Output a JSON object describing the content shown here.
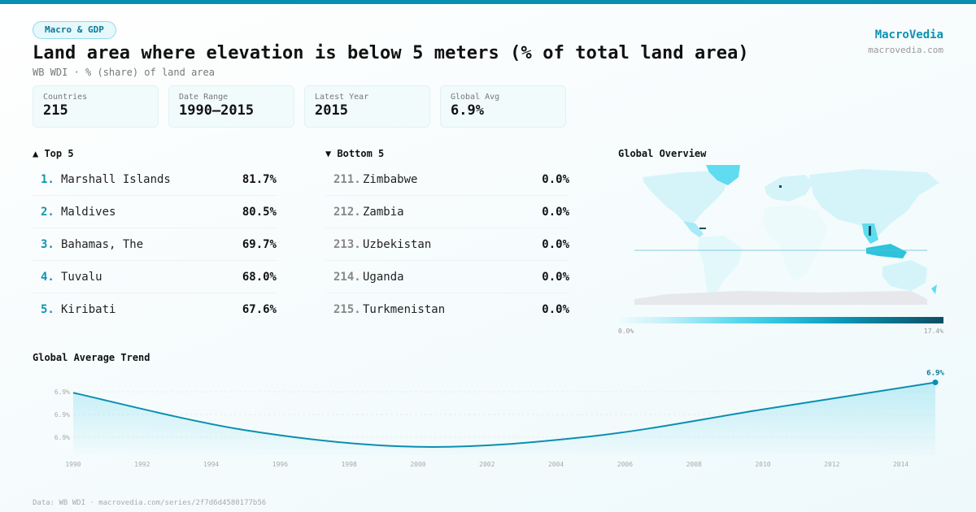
{
  "header": {
    "category_pill": "Macro & GDP",
    "title": "Land area where elevation is below 5 meters (% of total land area)",
    "subtitle": "WB WDI · % (share) of land area",
    "brand_name": "MacroVedia",
    "brand_url": "macrovedia.com"
  },
  "stats": [
    {
      "label": "Countries",
      "value": "215"
    },
    {
      "label": "Date Range",
      "value": "1990–2015"
    },
    {
      "label": "Latest Year",
      "value": "2015"
    },
    {
      "label": "Global Avg",
      "value": "6.9%"
    }
  ],
  "top5": {
    "title": "▲ Top 5",
    "items": [
      {
        "rank": "1.",
        "name": "Marshall Islands",
        "value": "81.7%"
      },
      {
        "rank": "2.",
        "name": "Maldives",
        "value": "80.5%"
      },
      {
        "rank": "3.",
        "name": "Bahamas, The",
        "value": "69.7%"
      },
      {
        "rank": "4.",
        "name": "Tuvalu",
        "value": "68.0%"
      },
      {
        "rank": "5.",
        "name": "Kiribati",
        "value": "67.6%"
      }
    ]
  },
  "bottom5": {
    "title": "▼ Bottom 5",
    "items": [
      {
        "rank": "211.",
        "name": "Zimbabwe",
        "value": "0.0%"
      },
      {
        "rank": "212.",
        "name": "Zambia",
        "value": "0.0%"
      },
      {
        "rank": "213.",
        "name": "Uzbekistan",
        "value": "0.0%"
      },
      {
        "rank": "214.",
        "name": "Uganda",
        "value": "0.0%"
      },
      {
        "rank": "215.",
        "name": "Turkmenistan",
        "value": "0.0%"
      }
    ]
  },
  "map": {
    "title": "Global Overview",
    "legend_min": "0.0%",
    "legend_max": "17.4%",
    "colors": {
      "low": "#effcfd",
      "mid": "#2cc3dd",
      "high": "#0e4e63",
      "no_data": "#e6e8ec"
    }
  },
  "trend": {
    "title": "Global Average Trend"
  },
  "chart_data": {
    "type": "area",
    "title": "Global Average Trend",
    "x": [
      1990,
      1995,
      2000,
      2005,
      2010,
      2015
    ],
    "values": [
      6.93,
      6.912,
      6.904,
      6.909,
      6.922,
      6.935
    ],
    "x_ticks": [
      "1990",
      "1992",
      "1994",
      "1996",
      "1998",
      "2000",
      "2002",
      "2004",
      "2006",
      "2008",
      "2010",
      "2012",
      "2014"
    ],
    "y_ticks": [
      "6.9%",
      "6.9%",
      "6.9%"
    ],
    "ylim": [
      6.9,
      6.936
    ],
    "end_label": "6.9%",
    "grid": true,
    "line_color": "#0b8fb0"
  },
  "footer": {
    "source": "Data: WB WDI · macrovedia.com/series/2f7d6d4580177b56"
  }
}
